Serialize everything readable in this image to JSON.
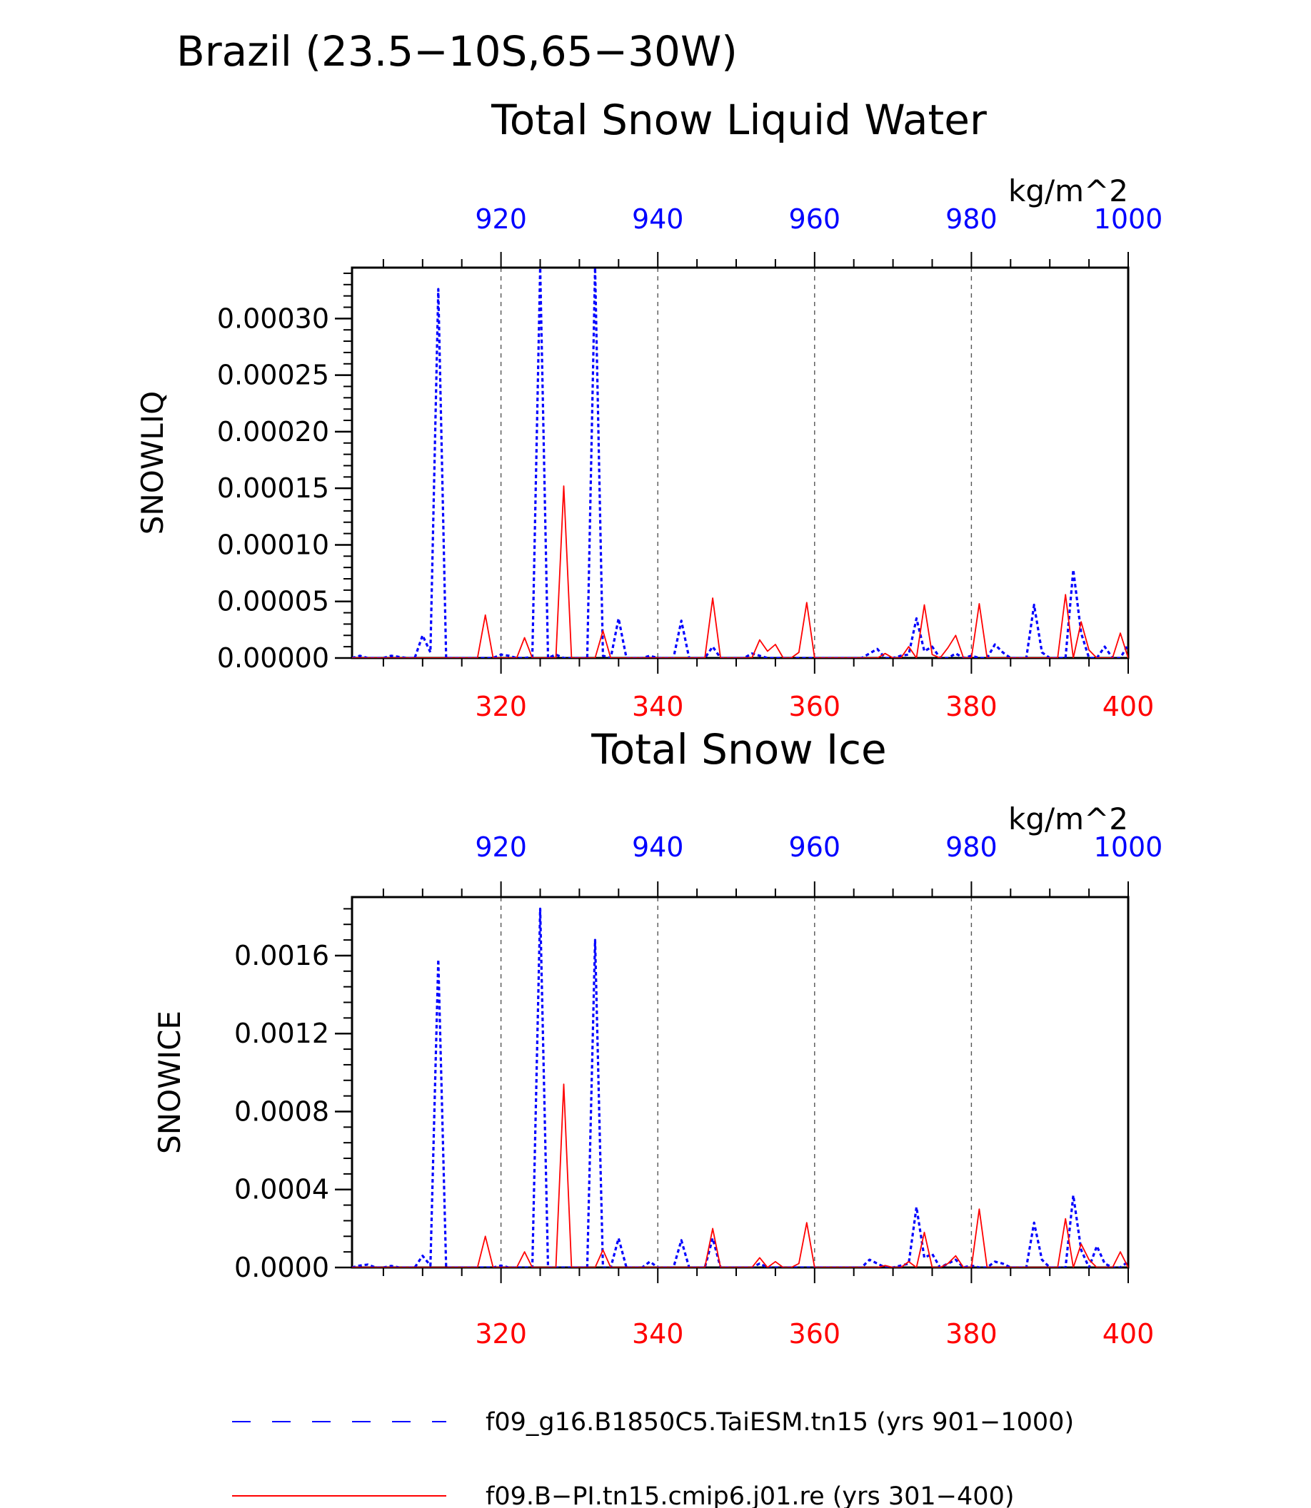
{
  "title": "Brazil (23.5−10S,65−30W)",
  "colors": {
    "blue": "#0000ff",
    "red": "#ff0000",
    "axis": "#000000",
    "grid": "#555555"
  },
  "legend": [
    {
      "label": "f09_g16.B1850C5.TaiESM.tn15 (yrs 901−1000)",
      "color": "#0000ff",
      "style": "dashed"
    },
    {
      "label": "f09.B−PI.tn15.cmip6.j01.re (yrs 301−400)",
      "color": "#ff0000",
      "style": "solid"
    }
  ],
  "chart_data": [
    {
      "type": "line",
      "title": "Total Snow Liquid Water",
      "units": "kg/m^2",
      "ylabel": "SNOWLIQ",
      "ylim": [
        0,
        0.000345
      ],
      "yticks": [
        "0.00000",
        "0.00005",
        "0.00010",
        "0.00015",
        "0.00020",
        "0.00025",
        "0.00030"
      ],
      "ytick_values": [
        0,
        5e-05,
        0.0001,
        0.00015,
        0.0002,
        0.00025,
        0.0003
      ],
      "bottom_axis": {
        "range": [
          301,
          400
        ],
        "ticks": [
          "320",
          "340",
          "360",
          "380",
          "400"
        ],
        "color": "#ff0000"
      },
      "top_axis": {
        "range": [
          901,
          1000
        ],
        "ticks": [
          "920",
          "940",
          "960",
          "980",
          "1000"
        ],
        "color": "#0000ff"
      },
      "grid": "vertical dashed at major ticks",
      "series": [
        {
          "name": "f09_g16.B1850C5.TaiESM.tn15 (yrs 901−1000)",
          "axis": "top",
          "style": "dashed",
          "x": [
            901,
            902,
            903,
            904,
            905,
            906,
            907,
            908,
            909,
            910,
            911,
            912,
            913,
            914,
            915,
            916,
            917,
            918,
            919,
            920,
            921,
            922,
            923,
            924,
            925,
            926,
            927,
            928,
            929,
            930,
            931,
            932,
            933,
            934,
            935,
            936,
            937,
            938,
            939,
            940,
            941,
            942,
            943,
            944,
            945,
            946,
            947,
            948,
            949,
            950,
            951,
            952,
            953,
            954,
            955,
            956,
            957,
            958,
            959,
            960,
            961,
            962,
            963,
            964,
            965,
            966,
            967,
            968,
            969,
            970,
            971,
            972,
            973,
            974,
            975,
            976,
            977,
            978,
            979,
            980,
            981,
            982,
            983,
            984,
            985,
            986,
            987,
            988,
            989,
            990,
            991,
            992,
            993,
            994,
            995,
            996,
            997,
            998,
            999,
            1000
          ],
          "y": [
            0,
            2e-06,
            0,
            0,
            0,
            2e-06,
            1e-06,
            0,
            0,
            2e-05,
            5e-06,
            0.000326,
            0,
            0,
            0,
            0,
            0,
            0,
            0,
            3e-06,
            2e-06,
            0,
            0,
            1e-06,
            0.000345,
            0,
            3e-06,
            0,
            0,
            0,
            0,
            0.000345,
            2e-06,
            0,
            3.5e-05,
            0,
            0,
            0,
            2e-06,
            0,
            0,
            0,
            3.3e-05,
            0,
            0,
            0,
            1e-05,
            0,
            0,
            0,
            0,
            4e-06,
            2e-06,
            0,
            0,
            0,
            0,
            0,
            0,
            0,
            0,
            0,
            0,
            0,
            0,
            0,
            4e-06,
            8e-06,
            0,
            0,
            2e-06,
            3e-06,
            3.5e-05,
            6e-06,
            1e-05,
            0,
            0,
            4e-06,
            0,
            2e-06,
            0,
            0,
            1.2e-05,
            5e-06,
            0,
            0,
            0,
            4.7e-05,
            5e-06,
            0,
            0,
            0,
            7.8e-05,
            2.2e-05,
            0,
            0,
            1e-05,
            0,
            0,
            1.2e-05
          ]
        },
        {
          "name": "f09.B−PI.tn15.cmip6.j01.re (yrs 301−400)",
          "axis": "bottom",
          "style": "solid",
          "x": [
            301,
            302,
            303,
            304,
            305,
            306,
            307,
            308,
            309,
            310,
            311,
            312,
            313,
            314,
            315,
            316,
            317,
            318,
            319,
            320,
            321,
            322,
            323,
            324,
            325,
            326,
            327,
            328,
            329,
            330,
            331,
            332,
            333,
            334,
            335,
            336,
            337,
            338,
            339,
            340,
            341,
            342,
            343,
            344,
            345,
            346,
            347,
            348,
            349,
            350,
            351,
            352,
            353,
            354,
            355,
            356,
            357,
            358,
            359,
            360,
            361,
            362,
            363,
            364,
            365,
            366,
            367,
            368,
            369,
            370,
            371,
            372,
            373,
            374,
            375,
            376,
            377,
            378,
            379,
            380,
            381,
            382,
            383,
            384,
            385,
            386,
            387,
            388,
            389,
            390,
            391,
            392,
            393,
            394,
            395,
            396,
            397,
            398,
            399,
            400
          ],
          "y": [
            0,
            0,
            0,
            0,
            0,
            0,
            0,
            0,
            0,
            0,
            0,
            0,
            0,
            0,
            0,
            0,
            0,
            3.8e-05,
            0,
            0,
            0,
            0,
            1.8e-05,
            0,
            0,
            0,
            0,
            0.000152,
            0,
            0,
            0,
            0,
            2.4e-05,
            0,
            0,
            0,
            0,
            0,
            0,
            0,
            0,
            0,
            0,
            0,
            0,
            0,
            5.3e-05,
            0,
            0,
            0,
            0,
            0,
            1.6e-05,
            6e-06,
            1.2e-05,
            0,
            0,
            5e-06,
            4.9e-05,
            0,
            0,
            0,
            0,
            0,
            0,
            0,
            0,
            0,
            4e-06,
            0,
            0,
            1e-05,
            0,
            4.7e-05,
            3e-06,
            0,
            9e-06,
            2e-05,
            0,
            0,
            4.8e-05,
            0,
            0,
            0,
            0,
            0,
            0,
            0,
            0,
            0,
            0,
            5.6e-05,
            0,
            3.2e-05,
            7e-06,
            0,
            0,
            0,
            2.2e-05,
            0
          ]
        }
      ]
    },
    {
      "type": "line",
      "title": "Total Snow Ice",
      "units": "kg/m^2",
      "ylabel": "SNOWICE",
      "ylim": [
        0,
        0.0019
      ],
      "yticks": [
        "0.0000",
        "0.0004",
        "0.0008",
        "0.0012",
        "0.0016"
      ],
      "ytick_values": [
        0,
        0.0004,
        0.0008,
        0.0012,
        0.0016
      ],
      "bottom_axis": {
        "range": [
          301,
          400
        ],
        "ticks": [
          "320",
          "340",
          "360",
          "380",
          "400"
        ],
        "color": "#ff0000"
      },
      "top_axis": {
        "range": [
          901,
          1000
        ],
        "ticks": [
          "920",
          "940",
          "960",
          "980",
          "1000"
        ],
        "color": "#0000ff"
      },
      "grid": "vertical dashed at major ticks",
      "series": [
        {
          "name": "f09_g16.B1850C5.TaiESM.tn15 (yrs 901−1000)",
          "axis": "top",
          "style": "dashed",
          "x": [
            901,
            902,
            903,
            904,
            905,
            906,
            907,
            908,
            909,
            910,
            911,
            912,
            913,
            914,
            915,
            916,
            917,
            918,
            919,
            920,
            921,
            922,
            923,
            924,
            925,
            926,
            927,
            928,
            929,
            930,
            931,
            932,
            933,
            934,
            935,
            936,
            937,
            938,
            939,
            940,
            941,
            942,
            943,
            944,
            945,
            946,
            947,
            948,
            949,
            950,
            951,
            952,
            953,
            954,
            955,
            956,
            957,
            958,
            959,
            960,
            961,
            962,
            963,
            964,
            965,
            966,
            967,
            968,
            969,
            970,
            971,
            972,
            973,
            974,
            975,
            976,
            977,
            978,
            979,
            980,
            981,
            982,
            983,
            984,
            985,
            986,
            987,
            988,
            989,
            990,
            991,
            992,
            993,
            994,
            995,
            996,
            997,
            998,
            999,
            1000
          ],
          "y": [
            0,
            1e-05,
            1.5e-05,
            0,
            0,
            8e-06,
            0,
            0,
            0,
            6e-05,
            1e-05,
            0.00158,
            0,
            0,
            0,
            0,
            0,
            0,
            0,
            1e-05,
            0,
            0,
            0,
            0,
            0.00184,
            0,
            0,
            0,
            0,
            0,
            0,
            0.00168,
            0,
            0,
            0.00015,
            0,
            0,
            0,
            3e-05,
            0,
            0,
            0,
            0.00014,
            0,
            0,
            0,
            0.00015,
            0,
            0,
            0,
            0,
            0,
            2e-05,
            0,
            0,
            0,
            0,
            0,
            0,
            0,
            0,
            0,
            0,
            0,
            0,
            0,
            4e-05,
            2e-05,
            0,
            0,
            1e-05,
            2e-05,
            0.00031,
            5e-05,
            7e-05,
            0,
            2e-05,
            4e-05,
            0,
            1e-05,
            0,
            0,
            3e-05,
            2e-05,
            0,
            0,
            0,
            0.00023,
            4e-05,
            0,
            0,
            0,
            0.00037,
            9e-05,
            0,
            0.00011,
            2e-05,
            0,
            0,
            3e-05
          ]
        },
        {
          "name": "f09.B−PI.tn15.cmip6.j01.re (yrs 301−400)",
          "axis": "bottom",
          "style": "solid",
          "x": [
            301,
            302,
            303,
            304,
            305,
            306,
            307,
            308,
            309,
            310,
            311,
            312,
            313,
            314,
            315,
            316,
            317,
            318,
            319,
            320,
            321,
            322,
            323,
            324,
            325,
            326,
            327,
            328,
            329,
            330,
            331,
            332,
            333,
            334,
            335,
            336,
            337,
            338,
            339,
            340,
            341,
            342,
            343,
            344,
            345,
            346,
            347,
            348,
            349,
            350,
            351,
            352,
            353,
            354,
            355,
            356,
            357,
            358,
            359,
            360,
            361,
            362,
            363,
            364,
            365,
            366,
            367,
            368,
            369,
            370,
            371,
            372,
            373,
            374,
            375,
            376,
            377,
            378,
            379,
            380,
            381,
            382,
            383,
            384,
            385,
            386,
            387,
            388,
            389,
            390,
            391,
            392,
            393,
            394,
            395,
            396,
            397,
            398,
            399,
            400
          ],
          "y": [
            0,
            0,
            0,
            0,
            0,
            0,
            0,
            0,
            0,
            0,
            0,
            0,
            0,
            0,
            0,
            0,
            0,
            0.00016,
            0,
            0,
            0,
            0,
            8e-05,
            0,
            0,
            0,
            0,
            0.00094,
            0,
            0,
            0,
            0,
            9e-05,
            0,
            0,
            0,
            0,
            0,
            0,
            0,
            0,
            0,
            0,
            0,
            0,
            0,
            0.0002,
            0,
            0,
            0,
            0,
            0,
            5e-05,
            0,
            3e-05,
            0,
            0,
            2e-05,
            0.00023,
            0,
            0,
            0,
            0,
            0,
            0,
            0,
            0,
            0,
            1e-05,
            0,
            0,
            3e-05,
            0,
            0.00018,
            0,
            0,
            2e-05,
            6e-05,
            0,
            0,
            0.0003,
            0,
            0,
            0,
            0,
            0,
            0,
            0,
            0,
            0,
            0,
            0.00025,
            0,
            0.00012,
            4e-05,
            0,
            0,
            0,
            8e-05,
            0
          ]
        }
      ]
    }
  ]
}
